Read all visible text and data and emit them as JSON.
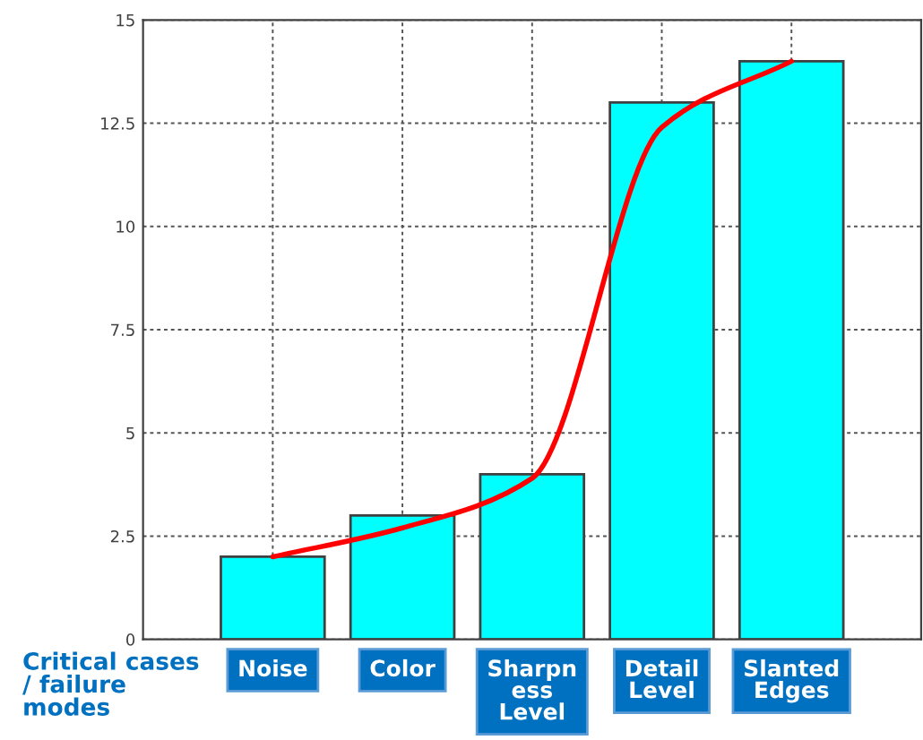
{
  "chart_data": {
    "type": "bar",
    "xlabel": "Critical cases\n/ failure\nmodes",
    "categories": [
      "Noise",
      "Color",
      "Sharpn\ness\nLevel",
      "Detail\nLevel",
      "Slanted\nEdges"
    ],
    "series": [
      {
        "color": "#00ffff",
        "values": [
          2,
          3,
          4,
          13,
          14
        ]
      },
      {
        "type": "line",
        "color": "#ff0000",
        "values": [
          2.0,
          2.7,
          3.9,
          12.4,
          14.0
        ]
      }
    ],
    "ylim": [
      0,
      15
    ],
    "yticks": [
      0,
      2.5,
      5,
      7.5,
      10,
      12.5,
      15
    ],
    "grid": true,
    "line_style": "solid"
  }
}
